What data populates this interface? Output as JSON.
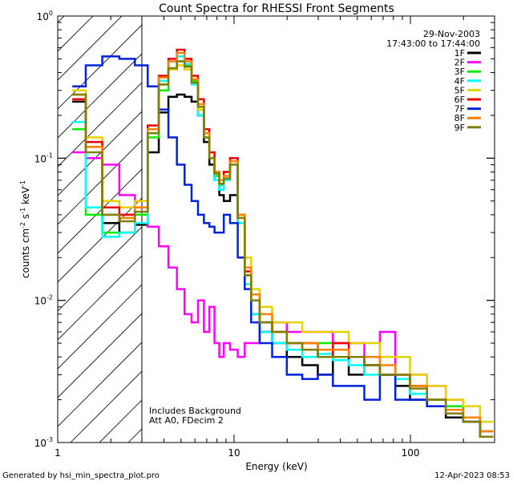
{
  "footer": {
    "generated": "Generated by hsi_min_spectra_plot.pro",
    "timestamp": "12-Apr-2023 08:53"
  },
  "annotations": {
    "date": "29-Nov-2003",
    "time_range": "17:43:00 to 17:44:00",
    "note_line1": "Includes Background",
    "note_line2": "Att A0, FDecim 2"
  },
  "chart_data": {
    "type": "line",
    "title": "Count Spectra for RHESSI Front Segments",
    "xlabel": "Energy (keV)",
    "ylabel": "counts cm-2 s-1 keV-1",
    "xscale": "log",
    "yscale": "log",
    "xlim": [
      1.0,
      300.0
    ],
    "ylim": [
      0.001,
      1.0
    ],
    "x_ticks": [
      {
        "value": 1,
        "label": "1"
      },
      {
        "value": 10,
        "label": "10"
      },
      {
        "value": 100,
        "label": "100"
      }
    ],
    "y_ticks": [
      {
        "value": 1.0,
        "mant": "10",
        "exp": "0"
      },
      {
        "value": 0.1,
        "mant": "10",
        "exp": "-1"
      },
      {
        "value": 0.01,
        "mant": "10",
        "exp": "-2"
      },
      {
        "value": 0.001,
        "mant": "10",
        "exp": "-3"
      }
    ],
    "shaded_region": {
      "x_from": 1.0,
      "x_to": 3.0,
      "style": "hatched"
    },
    "legend_position": "top-right",
    "series": [
      {
        "name": "1F",
        "color": "#000000",
        "x": [
          1.3,
          1.6,
          2.0,
          2.5,
          3.0,
          3.5,
          4.0,
          4.5,
          5.0,
          5.5,
          6.0,
          6.5,
          7.0,
          7.5,
          8.0,
          8.5,
          9.0,
          10.0,
          11.0,
          12.0,
          13.0,
          15.0,
          18.0,
          22.0,
          27.0,
          33.0,
          40.0,
          50.0,
          60.0,
          75.0,
          90.0,
          110.0,
          140.0,
          180.0,
          220.0,
          280.0
        ],
        "y": [
          0.25,
          0.1,
          0.035,
          0.03,
          0.034,
          0.11,
          0.21,
          0.27,
          0.28,
          0.27,
          0.25,
          0.2,
          0.13,
          0.09,
          0.07,
          0.055,
          0.05,
          0.055,
          0.035,
          0.015,
          0.008,
          0.006,
          0.005,
          0.004,
          0.0035,
          0.003,
          0.004,
          0.003,
          0.0035,
          0.003,
          0.0025,
          0.002,
          0.0018,
          0.0015,
          0.0014,
          0.0012
        ]
      },
      {
        "name": "2F",
        "color": "#ff00ff",
        "x": [
          1.3,
          1.6,
          2.0,
          2.5,
          3.0,
          3.5,
          4.0,
          4.5,
          5.0,
          5.5,
          6.0,
          6.5,
          7.0,
          7.5,
          8.0,
          8.5,
          9.0,
          10.0,
          11.0,
          12.0,
          13.0,
          15.0,
          18.0,
          22.0,
          27.0,
          33.0,
          40.0,
          50.0,
          60.0,
          75.0,
          90.0,
          110.0,
          140.0,
          180.0,
          220.0,
          280.0
        ],
        "y": [
          0.11,
          0.1,
          0.09,
          0.055,
          0.045,
          0.033,
          0.024,
          0.017,
          0.012,
          0.008,
          0.007,
          0.01,
          0.006,
          0.009,
          0.005,
          0.004,
          0.005,
          0.0045,
          0.004,
          0.005,
          0.005,
          0.006,
          0.007,
          0.006,
          0.006,
          0.006,
          0.005,
          0.005,
          0.004,
          0.006,
          0.003,
          0.003,
          0.0025,
          0.002,
          0.0015,
          0.0012
        ]
      },
      {
        "name": "3F",
        "color": "#00ee00",
        "x": [
          1.3,
          1.6,
          2.0,
          2.5,
          3.0,
          3.5,
          4.0,
          4.5,
          5.0,
          5.5,
          6.0,
          6.5,
          7.0,
          7.5,
          8.0,
          8.5,
          9.0,
          10.0,
          11.0,
          12.0,
          13.0,
          15.0,
          18.0,
          22.0,
          27.0,
          33.0,
          40.0,
          50.0,
          60.0,
          75.0,
          90.0,
          110.0,
          140.0,
          180.0,
          220.0,
          280.0
        ],
        "y": [
          0.16,
          0.04,
          0.03,
          0.03,
          0.04,
          0.14,
          0.3,
          0.42,
          0.48,
          0.45,
          0.35,
          0.22,
          0.14,
          0.1,
          0.075,
          0.065,
          0.08,
          0.1,
          0.04,
          0.015,
          0.01,
          0.007,
          0.006,
          0.005,
          0.0045,
          0.005,
          0.004,
          0.004,
          0.0035,
          0.003,
          0.003,
          0.0025,
          0.002,
          0.0018,
          0.0015,
          0.0012
        ]
      },
      {
        "name": "4F",
        "color": "#00ffff",
        "x": [
          1.3,
          1.6,
          2.0,
          2.5,
          3.0,
          3.5,
          4.0,
          4.5,
          5.0,
          5.5,
          6.0,
          6.5,
          7.0,
          7.5,
          8.0,
          8.5,
          9.0,
          10.0,
          11.0,
          12.0,
          13.0,
          15.0,
          18.0,
          22.0,
          27.0,
          33.0,
          40.0,
          50.0,
          60.0,
          75.0,
          90.0,
          110.0,
          140.0,
          180.0,
          220.0,
          280.0
        ],
        "y": [
          0.18,
          0.045,
          0.028,
          0.03,
          0.035,
          0.15,
          0.35,
          0.48,
          0.52,
          0.46,
          0.33,
          0.2,
          0.14,
          0.1,
          0.07,
          0.06,
          0.07,
          0.09,
          0.035,
          0.013,
          0.008,
          0.006,
          0.005,
          0.0045,
          0.004,
          0.0042,
          0.0038,
          0.0035,
          0.003,
          0.003,
          0.0028,
          0.0022,
          0.002,
          0.0016,
          0.0014,
          0.0012
        ]
      },
      {
        "name": "5F",
        "color": "#e6d200",
        "x": [
          1.3,
          1.6,
          2.0,
          2.5,
          3.0,
          3.5,
          4.0,
          4.5,
          5.0,
          5.5,
          6.0,
          6.5,
          7.0,
          7.5,
          8.0,
          8.5,
          9.0,
          10.0,
          11.0,
          12.0,
          13.0,
          15.0,
          18.0,
          22.0,
          27.0,
          33.0,
          40.0,
          50.0,
          60.0,
          75.0,
          90.0,
          110.0,
          140.0,
          180.0,
          220.0,
          280.0
        ],
        "y": [
          0.3,
          0.14,
          0.05,
          0.045,
          0.05,
          0.16,
          0.33,
          0.42,
          0.45,
          0.42,
          0.34,
          0.22,
          0.15,
          0.1,
          0.08,
          0.07,
          0.08,
          0.09,
          0.04,
          0.02,
          0.012,
          0.009,
          0.007,
          0.007,
          0.006,
          0.006,
          0.006,
          0.005,
          0.005,
          0.004,
          0.004,
          0.003,
          0.0025,
          0.002,
          0.0018,
          0.0014
        ]
      },
      {
        "name": "6F",
        "color": "#ee0000",
        "x": [
          1.3,
          1.6,
          2.0,
          2.5,
          3.0,
          3.5,
          4.0,
          4.5,
          5.0,
          5.5,
          6.0,
          6.5,
          7.0,
          7.5,
          8.0,
          8.5,
          9.0,
          10.0,
          11.0,
          12.0,
          13.0,
          15.0,
          18.0,
          22.0,
          27.0,
          33.0,
          40.0,
          50.0,
          60.0,
          75.0,
          90.0,
          110.0,
          140.0,
          180.0,
          220.0,
          280.0
        ],
        "y": [
          0.26,
          0.13,
          0.045,
          0.04,
          0.045,
          0.17,
          0.38,
          0.5,
          0.58,
          0.5,
          0.38,
          0.26,
          0.16,
          0.11,
          0.08,
          0.07,
          0.08,
          0.1,
          0.04,
          0.016,
          0.01,
          0.007,
          0.006,
          0.005,
          0.005,
          0.004,
          0.005,
          0.004,
          0.0035,
          0.003,
          0.003,
          0.0025,
          0.002,
          0.0016,
          0.0014,
          0.0011
        ]
      },
      {
        "name": "7F",
        "color": "#0022dd",
        "x": [
          1.3,
          1.6,
          2.0,
          2.5,
          3.0,
          3.5,
          4.0,
          4.5,
          5.0,
          5.5,
          6.0,
          6.5,
          7.0,
          7.5,
          8.0,
          8.5,
          9.0,
          10.0,
          11.0,
          12.0,
          13.0,
          15.0,
          18.0,
          22.0,
          27.0,
          33.0,
          40.0,
          50.0,
          60.0,
          75.0,
          90.0,
          110.0,
          140.0,
          180.0,
          220.0,
          280.0
        ],
        "y": [
          0.32,
          0.45,
          0.52,
          0.5,
          0.45,
          0.32,
          0.22,
          0.14,
          0.09,
          0.065,
          0.05,
          0.04,
          0.035,
          0.033,
          0.03,
          0.03,
          0.04,
          0.035,
          0.02,
          0.012,
          0.007,
          0.005,
          0.004,
          0.003,
          0.0028,
          0.003,
          0.0025,
          0.0025,
          0.002,
          0.003,
          0.002,
          0.002,
          0.0018,
          0.0016,
          0.0014,
          0.0011
        ]
      },
      {
        "name": "8F",
        "color": "#ff8000",
        "x": [
          1.3,
          1.6,
          2.0,
          2.5,
          3.0,
          3.5,
          4.0,
          4.5,
          5.0,
          5.5,
          6.0,
          6.5,
          7.0,
          7.5,
          8.0,
          8.5,
          9.0,
          10.0,
          11.0,
          12.0,
          13.0,
          15.0,
          18.0,
          22.0,
          27.0,
          33.0,
          40.0,
          50.0,
          60.0,
          75.0,
          90.0,
          110.0,
          140.0,
          180.0,
          220.0,
          280.0
        ],
        "y": [
          0.28,
          0.12,
          0.04,
          0.038,
          0.045,
          0.16,
          0.37,
          0.48,
          0.55,
          0.48,
          0.36,
          0.24,
          0.15,
          0.1,
          0.08,
          0.07,
          0.075,
          0.095,
          0.04,
          0.017,
          0.011,
          0.008,
          0.006,
          0.005,
          0.005,
          0.0045,
          0.0045,
          0.004,
          0.004,
          0.0035,
          0.003,
          0.0025,
          0.002,
          0.0017,
          0.0015,
          0.0012
        ]
      },
      {
        "name": "9F",
        "color": "#808000",
        "x": [
          1.3,
          1.6,
          2.0,
          2.5,
          3.0,
          3.5,
          4.0,
          4.5,
          5.0,
          5.5,
          6.0,
          6.5,
          7.0,
          7.5,
          8.0,
          8.5,
          9.0,
          10.0,
          11.0,
          12.0,
          13.0,
          15.0,
          18.0,
          22.0,
          27.0,
          33.0,
          40.0,
          50.0,
          60.0,
          75.0,
          90.0,
          110.0,
          140.0,
          180.0,
          220.0,
          280.0
        ],
        "y": [
          0.28,
          0.11,
          0.04,
          0.036,
          0.042,
          0.15,
          0.33,
          0.43,
          0.48,
          0.44,
          0.34,
          0.23,
          0.14,
          0.1,
          0.078,
          0.066,
          0.072,
          0.09,
          0.038,
          0.015,
          0.01,
          0.007,
          0.006,
          0.005,
          0.0045,
          0.004,
          0.004,
          0.004,
          0.0035,
          0.003,
          0.003,
          0.0024,
          0.002,
          0.0016,
          0.0014,
          0.0011
        ]
      }
    ]
  }
}
